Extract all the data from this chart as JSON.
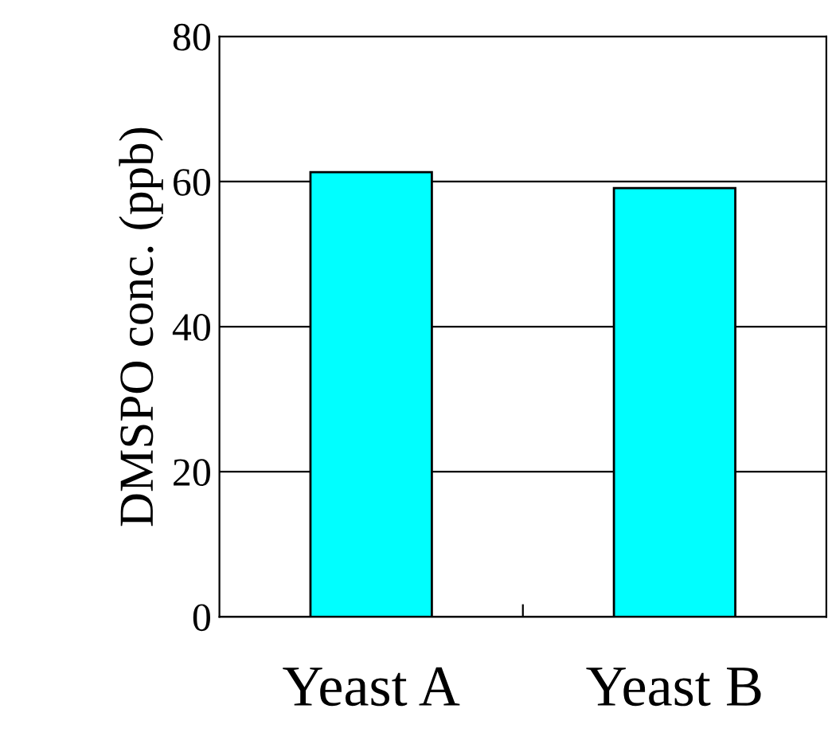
{
  "chart_data": {
    "type": "bar",
    "ylabel": "DMSPO conc. (ppb)",
    "categories": [
      "Yeast A",
      "Yeast B"
    ],
    "values": [
      61.3,
      59.1
    ],
    "color": "#00ffff",
    "ylim": [
      0,
      80
    ],
    "yticks": [
      0,
      20,
      40,
      60,
      80
    ],
    "grid": "y"
  }
}
